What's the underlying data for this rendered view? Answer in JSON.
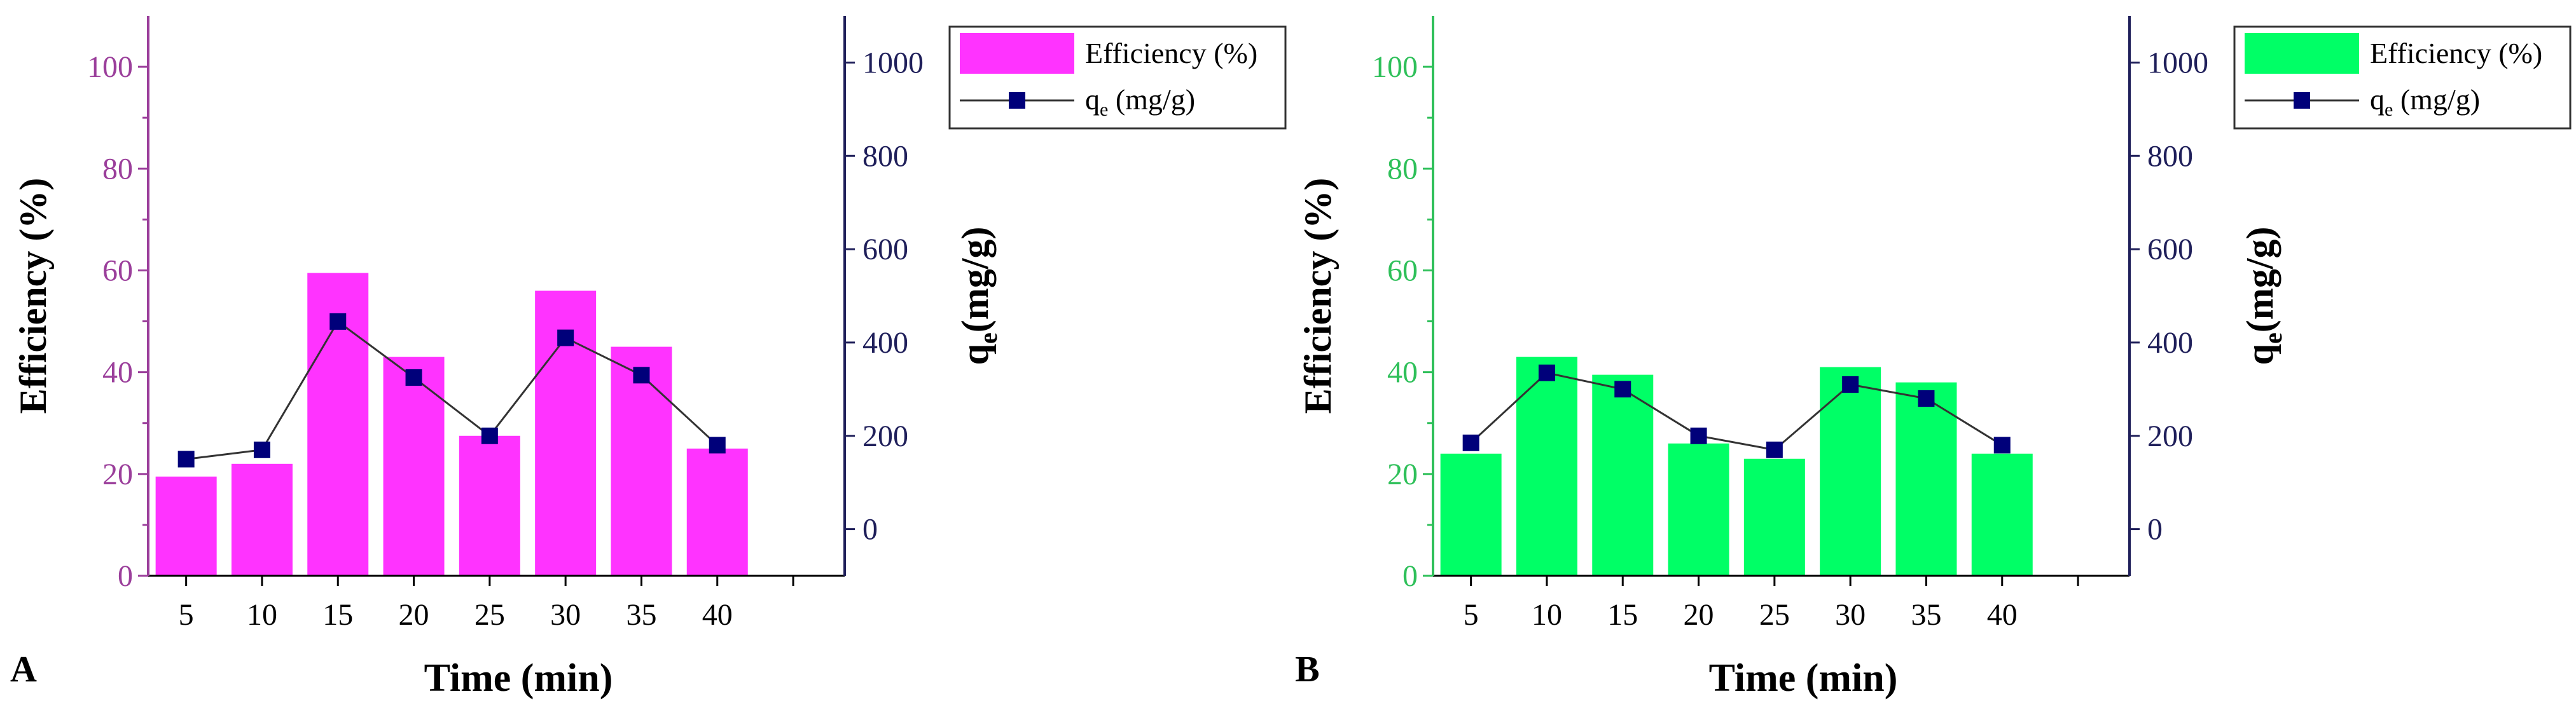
{
  "chart_data": [
    {
      "type": "bar",
      "panel_label": "A",
      "bar_color": "#ff33ff",
      "left_axis_color": "#9b3f9b",
      "right_axis_color": "#1f1f5a",
      "marker_color": "#00007a",
      "categories": [
        "5",
        "10",
        "15",
        "20",
        "25",
        "30",
        "35",
        "40"
      ],
      "series": [
        {
          "name": "Efficiency (%)",
          "axis": "left",
          "kind": "bar",
          "values": [
            19.5,
            22,
            59.5,
            43,
            27.5,
            56,
            45,
            25
          ]
        },
        {
          "name": "qe (mg/g)",
          "axis": "right",
          "kind": "line-marker",
          "values": [
            150,
            170,
            445,
            325,
            200,
            410,
            330,
            180
          ]
        }
      ],
      "legend": {
        "bar_label": "Efficiency (%)",
        "line_main": "q",
        "line_sub": "e",
        "line_unit": " (mg/g)",
        "position": "top-right"
      },
      "xlabel": "Time (min)",
      "ylabel": "Efficiency (%)",
      "y2label_main": "q",
      "y2label_sub": "e",
      "y2label_unit": "(mg/g)",
      "ylim": [
        0,
        110
      ],
      "y2lim": [
        -100,
        1100
      ],
      "yticks": [
        "0",
        "20",
        "40",
        "60",
        "80",
        "100"
      ],
      "y2ticks": [
        "0",
        "200",
        "400",
        "600",
        "800",
        "1000"
      ]
    },
    {
      "type": "bar",
      "panel_label": "B",
      "bar_color": "#00ff66",
      "left_axis_color": "#2fc05a",
      "right_axis_color": "#1f1f5a",
      "marker_color": "#00007a",
      "categories": [
        "5",
        "10",
        "15",
        "20",
        "25",
        "30",
        "35",
        "40"
      ],
      "series": [
        {
          "name": "Efficiency (%)",
          "axis": "left",
          "kind": "bar",
          "values": [
            24,
            43,
            39.5,
            26,
            23,
            41,
            38,
            24
          ]
        },
        {
          "name": "qe (mg/g)",
          "axis": "right",
          "kind": "line-marker",
          "values": [
            185,
            335,
            300,
            200,
            170,
            310,
            280,
            180
          ]
        }
      ],
      "legend": {
        "bar_label": "Efficiency (%)",
        "line_main": "q",
        "line_sub": "e",
        "line_unit": " (mg/g)",
        "position": "top-right"
      },
      "xlabel": "Time (min)",
      "ylabel": "Efficiency (%)",
      "y2label_main": "q",
      "y2label_sub": "e",
      "y2label_unit": "(mg/g)",
      "ylim": [
        0,
        110
      ],
      "y2lim": [
        -100,
        1100
      ],
      "yticks": [
        "0",
        "20",
        "40",
        "60",
        "80",
        "100"
      ],
      "y2ticks": [
        "0",
        "200",
        "400",
        "600",
        "800",
        "1000"
      ]
    }
  ]
}
